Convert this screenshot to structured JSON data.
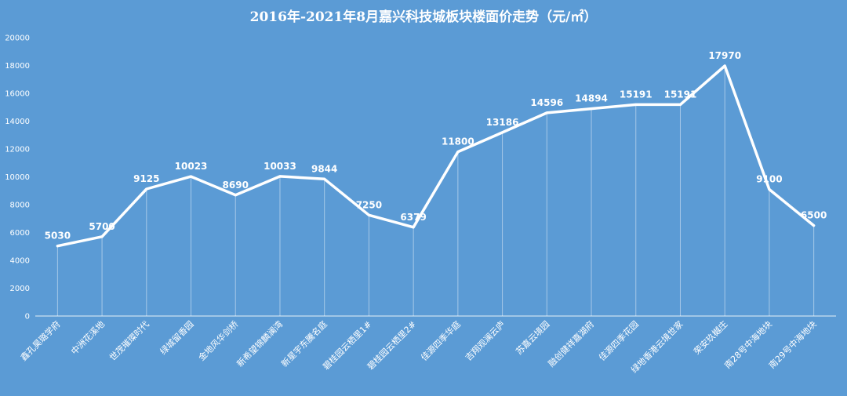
{
  "chart_data": {
    "type": "line",
    "title": "2016年-2021年8月嘉兴科技城板块楼面价走势（元/㎡）",
    "xlabel": "",
    "ylabel": "",
    "ylim": [
      0,
      20000
    ],
    "yticks": [
      0,
      2000,
      4000,
      6000,
      8000,
      10000,
      12000,
      14000,
      16000,
      18000,
      20000
    ],
    "grid": false,
    "drop_lines": true,
    "categories": [
      "鑫孔昊璐学府",
      "中洲花溪地",
      "世茂璀璨时代",
      "绿城留香园",
      "金地风华剑桥",
      "新希望锦麟澜湾",
      "新星宇东騰名庭",
      "碧桂园云栖里1#",
      "碧桂园云栖里2#",
      "佳源四季华庭",
      "吉翔观澜云庐",
      "苏嘉云境园",
      "融创健祥嘉湖府",
      "佳源四季花园",
      "绿地香港云境世家",
      "荣安玖樾庄",
      "南28号中海地块",
      "南29号中海地块"
    ],
    "series": [
      {
        "values": [
          5030,
          5700,
          9125,
          10023,
          8690,
          10033,
          9844,
          7250,
          6379,
          11800,
          13186,
          14596,
          14894,
          15191,
          15191,
          17970,
          9100,
          6500
        ]
      }
    ],
    "colors": {
      "background": "#5b9bd5",
      "line": "#ffffff",
      "text": "#ffffff"
    }
  }
}
